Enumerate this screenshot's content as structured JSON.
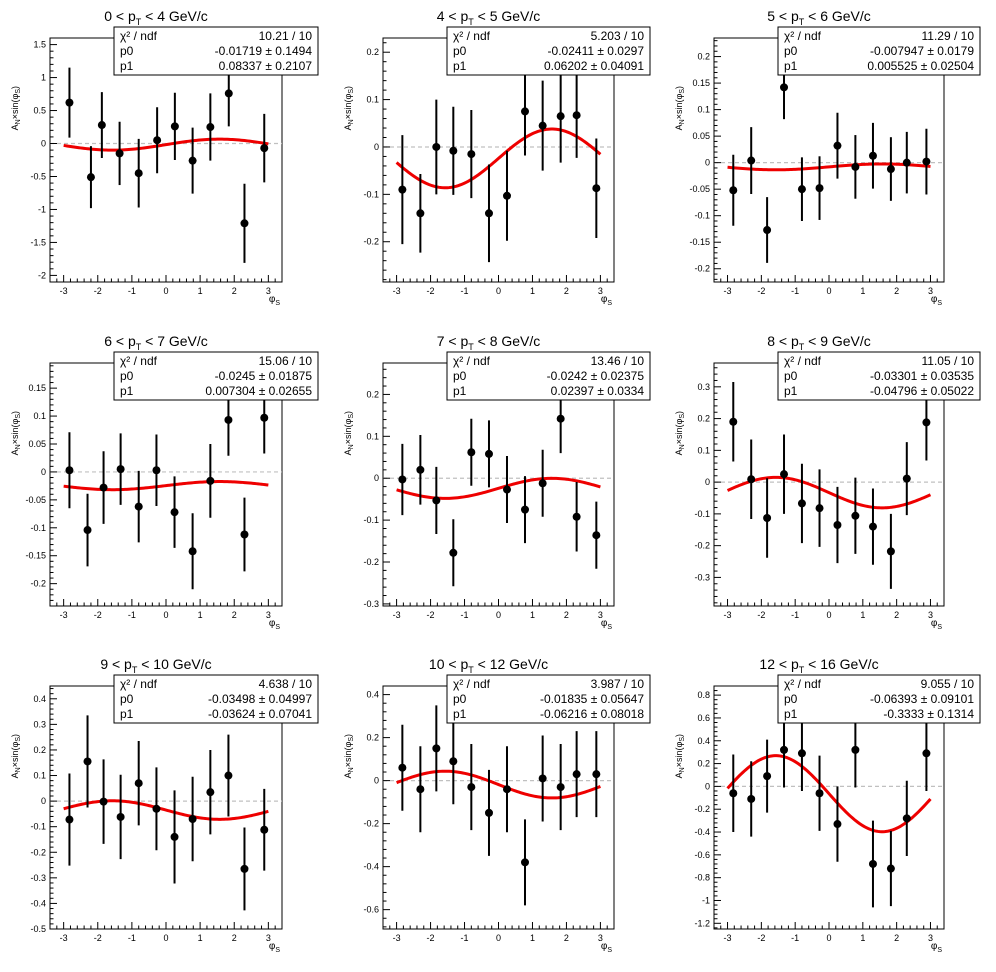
{
  "colors": {
    "fit": "#ee0000",
    "points": "#000000",
    "zero_line": "#c0c0c0",
    "frame": "#000000"
  },
  "chart_data": [
    {
      "type": "scatter",
      "title_prefix": "0 < p",
      "title_sub": "T",
      "title_suffix": " < 4 GeV/c",
      "ylabel": "A_{N}×sin(φ_{S})",
      "xlabel": "φ_{S}",
      "xlim": [
        -3.4,
        3.4
      ],
      "ylim": [
        -2.1,
        1.6
      ],
      "xticks": [
        -3,
        -2,
        -1,
        0,
        1,
        2,
        3
      ],
      "xtick_labels": [
        "-3",
        "-2",
        "-1",
        "0",
        "1",
        "2",
        "3"
      ],
      "yticks": [
        -2,
        -1.5,
        -1,
        -0.5,
        0,
        0.5,
        1,
        1.5
      ],
      "ytick_labels": [
        "-2",
        "-1.5",
        "-1",
        "-0.5",
        "0",
        "0.5",
        "1",
        "1.5"
      ],
      "stats": {
        "chi2_label": "χ² / ndf",
        "chi2": "10.21 / 10",
        "p0_label": "p0",
        "p0": "-0.01719 ± 0.1494",
        "p1_label": "p1",
        "p1": "0.08337 ± 0.2107"
      },
      "fit": {
        "p0": -0.01719,
        "p1": 0.08337
      },
      "points": [
        {
          "x": -2.83,
          "y": 0.62,
          "err": 0.53
        },
        {
          "x": -2.2,
          "y": -0.51,
          "err": 0.47
        },
        {
          "x": -1.88,
          "y": 0.28,
          "err": 0.5
        },
        {
          "x": -1.36,
          "y": -0.15,
          "err": 0.48
        },
        {
          "x": -0.8,
          "y": -0.45,
          "err": 0.52
        },
        {
          "x": -0.26,
          "y": 0.05,
          "err": 0.5
        },
        {
          "x": 0.26,
          "y": 0.26,
          "err": 0.51
        },
        {
          "x": 0.78,
          "y": -0.26,
          "err": 0.5
        },
        {
          "x": 1.3,
          "y": 0.25,
          "err": 0.51
        },
        {
          "x": 1.84,
          "y": 0.76,
          "err": 0.5
        },
        {
          "x": 2.3,
          "y": -1.21,
          "err": 0.6
        },
        {
          "x": 2.88,
          "y": -0.07,
          "err": 0.52
        }
      ]
    },
    {
      "type": "scatter",
      "title_prefix": "4 < p",
      "title_sub": "T",
      "title_suffix": " < 5 GeV/c",
      "ylabel": "A_{N}×sin(φ_{S})",
      "xlabel": "φ_{S}",
      "xlim": [
        -3.4,
        3.4
      ],
      "ylim": [
        -0.285,
        0.23
      ],
      "xticks": [
        -3,
        -2,
        -1,
        0,
        1,
        2,
        3
      ],
      "xtick_labels": [
        "-3",
        "-2",
        "-1",
        "0",
        "1",
        "2",
        "3"
      ],
      "yticks": [
        -0.2,
        -0.1,
        0,
        0.1,
        0.2
      ],
      "ytick_labels": [
        "-0.2",
        "-0.1",
        "0",
        "0.1",
        "0.2"
      ],
      "stats": {
        "chi2_label": "χ² / ndf",
        "chi2": "5.203 / 10",
        "p0_label": "p0",
        "p0": "-0.02411 ± 0.0297",
        "p1_label": "p1",
        "p1": "0.06202 ± 0.04091"
      },
      "fit": {
        "p0": -0.02411,
        "p1": 0.06202
      },
      "points": [
        {
          "x": -2.83,
          "y": -0.09,
          "err": 0.115
        },
        {
          "x": -2.3,
          "y": -0.14,
          "err": 0.083
        },
        {
          "x": -1.83,
          "y": 0.0,
          "err": 0.1
        },
        {
          "x": -1.33,
          "y": -0.008,
          "err": 0.093
        },
        {
          "x": -0.8,
          "y": -0.015,
          "err": 0.093
        },
        {
          "x": -0.28,
          "y": -0.14,
          "err": 0.103
        },
        {
          "x": 0.25,
          "y": -0.103,
          "err": 0.095
        },
        {
          "x": 0.78,
          "y": 0.075,
          "err": 0.093
        },
        {
          "x": 1.3,
          "y": 0.045,
          "err": 0.095
        },
        {
          "x": 1.83,
          "y": 0.065,
          "err": 0.098
        },
        {
          "x": 2.3,
          "y": 0.067,
          "err": 0.09
        },
        {
          "x": 2.88,
          "y": -0.087,
          "err": 0.105
        }
      ]
    },
    {
      "type": "scatter",
      "title_prefix": "5 < p",
      "title_sub": "T",
      "title_suffix": " < 6 GeV/c",
      "ylabel": "A_{N}×sin(φ_{S})",
      "xlabel": "φ_{S}",
      "xlim": [
        -3.4,
        3.4
      ],
      "ylim": [
        -0.225,
        0.235
      ],
      "xticks": [
        -3,
        -2,
        -1,
        0,
        1,
        2,
        3
      ],
      "xtick_labels": [
        "-3",
        "-2",
        "-1",
        "0",
        "1",
        "2",
        "3"
      ],
      "yticks": [
        -0.2,
        -0.15,
        -0.1,
        -0.05,
        0,
        0.05,
        0.1,
        0.15,
        0.2
      ],
      "ytick_labels": [
        "-0.2",
        "-0.15",
        "-0.1",
        "-0.05",
        "0",
        "0.05",
        "0.1",
        "0.15",
        "0.2"
      ],
      "stats": {
        "chi2_label": "χ² / ndf",
        "chi2": "11.29 / 10",
        "p0_label": "p0",
        "p0": "-0.007947 ± 0.0179",
        "p1_label": "p1",
        "p1": "0.005525 ± 0.02504"
      },
      "fit": {
        "p0": -0.007947,
        "p1": 0.005525
      },
      "points": [
        {
          "x": -2.83,
          "y": -0.052,
          "err": 0.067
        },
        {
          "x": -2.3,
          "y": 0.004,
          "err": 0.063
        },
        {
          "x": -1.83,
          "y": -0.127,
          "err": 0.062
        },
        {
          "x": -1.33,
          "y": 0.142,
          "err": 0.06
        },
        {
          "x": -0.8,
          "y": -0.05,
          "err": 0.06
        },
        {
          "x": -0.28,
          "y": -0.048,
          "err": 0.06
        },
        {
          "x": 0.25,
          "y": 0.032,
          "err": 0.062
        },
        {
          "x": 0.78,
          "y": -0.008,
          "err": 0.06
        },
        {
          "x": 1.3,
          "y": 0.013,
          "err": 0.062
        },
        {
          "x": 1.83,
          "y": -0.012,
          "err": 0.06
        },
        {
          "x": 2.3,
          "y": 0.0,
          "err": 0.058
        },
        {
          "x": 2.88,
          "y": 0.002,
          "err": 0.062
        }
      ]
    },
    {
      "type": "scatter",
      "title_prefix": "6 < p",
      "title_sub": "T",
      "title_suffix": " < 7 GeV/c",
      "ylabel": "A_{N}×sin(φ_{S})",
      "xlabel": "φ_{S}",
      "xlim": [
        -3.4,
        3.4
      ],
      "ylim": [
        -0.24,
        0.195
      ],
      "xticks": [
        -3,
        -2,
        -1,
        0,
        1,
        2,
        3
      ],
      "xtick_labels": [
        "-3",
        "-2",
        "-1",
        "0",
        "1",
        "2",
        "3"
      ],
      "yticks": [
        -0.2,
        -0.15,
        -0.1,
        -0.05,
        0,
        0.05,
        0.1,
        0.15
      ],
      "ytick_labels": [
        "-0.2",
        "-0.15",
        "-0.1",
        "-0.05",
        "0",
        "0.05",
        "0.1",
        "0.15"
      ],
      "stats": {
        "chi2_label": "χ² / ndf",
        "chi2": "15.06 / 10",
        "p0_label": "p0",
        "p0": "-0.0245 ± 0.01875",
        "p1_label": "p1",
        "p1": "0.007304 ± 0.02655"
      },
      "fit": {
        "p0": -0.0245,
        "p1": 0.007304
      },
      "points": [
        {
          "x": -2.83,
          "y": 0.003,
          "err": 0.068
        },
        {
          "x": -2.3,
          "y": -0.104,
          "err": 0.065
        },
        {
          "x": -1.83,
          "y": -0.028,
          "err": 0.065
        },
        {
          "x": -1.33,
          "y": 0.005,
          "err": 0.064
        },
        {
          "x": -0.8,
          "y": -0.062,
          "err": 0.064
        },
        {
          "x": -0.28,
          "y": 0.003,
          "err": 0.064
        },
        {
          "x": 0.25,
          "y": -0.072,
          "err": 0.064
        },
        {
          "x": 0.78,
          "y": -0.142,
          "err": 0.068
        },
        {
          "x": 1.3,
          "y": -0.016,
          "err": 0.066
        },
        {
          "x": 1.83,
          "y": 0.093,
          "err": 0.064
        },
        {
          "x": 2.3,
          "y": -0.112,
          "err": 0.066
        },
        {
          "x": 2.88,
          "y": 0.097,
          "err": 0.064
        }
      ]
    },
    {
      "type": "scatter",
      "title_prefix": "7 < p",
      "title_sub": "T",
      "title_suffix": " < 8 GeV/c",
      "ylabel": "A_{N}×sin(φ_{S})",
      "xlabel": "φ_{S}",
      "xlim": [
        -3.4,
        3.4
      ],
      "ylim": [
        -0.305,
        0.275
      ],
      "xticks": [
        -3,
        -2,
        -1,
        0,
        1,
        2,
        3
      ],
      "xtick_labels": [
        "-3",
        "-2",
        "-1",
        "0",
        "1",
        "2",
        "3"
      ],
      "yticks": [
        -0.3,
        -0.2,
        -0.1,
        0,
        0.1,
        0.2
      ],
      "ytick_labels": [
        "-0.3",
        "-0.2",
        "-0.1",
        "0",
        "0.1",
        "0.2"
      ],
      "stats": {
        "chi2_label": "χ² / ndf",
        "chi2": "13.46 / 10",
        "p0_label": "p0",
        "p0": "-0.0242 ± 0.02375",
        "p1_label": "p1",
        "p1": "0.02397 ± 0.0334"
      },
      "fit": {
        "p0": -0.0242,
        "p1": 0.02397
      },
      "points": [
        {
          "x": -2.83,
          "y": -0.003,
          "err": 0.085
        },
        {
          "x": -2.3,
          "y": 0.02,
          "err": 0.083
        },
        {
          "x": -1.83,
          "y": -0.053,
          "err": 0.08
        },
        {
          "x": -1.33,
          "y": -0.178,
          "err": 0.08
        },
        {
          "x": -0.8,
          "y": 0.062,
          "err": 0.08
        },
        {
          "x": -0.28,
          "y": 0.058,
          "err": 0.08
        },
        {
          "x": 0.25,
          "y": -0.027,
          "err": 0.08
        },
        {
          "x": 0.78,
          "y": -0.075,
          "err": 0.08
        },
        {
          "x": 1.3,
          "y": -0.012,
          "err": 0.08
        },
        {
          "x": 1.83,
          "y": 0.142,
          "err": 0.082
        },
        {
          "x": 2.3,
          "y": -0.092,
          "err": 0.083
        },
        {
          "x": 2.88,
          "y": -0.136,
          "err": 0.08
        }
      ]
    },
    {
      "type": "scatter",
      "title_prefix": "8 < p",
      "title_sub": "T",
      "title_suffix": " < 9 GeV/c",
      "ylabel": "A_{N}×sin(φ_{S})",
      "xlabel": "φ_{S}",
      "xlim": [
        -3.4,
        3.4
      ],
      "ylim": [
        -0.39,
        0.375
      ],
      "xticks": [
        -3,
        -2,
        -1,
        0,
        1,
        2,
        3
      ],
      "xtick_labels": [
        "-3",
        "-2",
        "-1",
        "0",
        "1",
        "2",
        "3"
      ],
      "yticks": [
        -0.3,
        -0.2,
        -0.1,
        0,
        0.1,
        0.2,
        0.3
      ],
      "ytick_labels": [
        "-0.3",
        "-0.2",
        "-0.1",
        "0",
        "0.1",
        "0.2",
        "0.3"
      ],
      "stats": {
        "chi2_label": "χ² / ndf",
        "chi2": "11.05 / 10",
        "p0_label": "p0",
        "p0": "-0.03301 ± 0.03535",
        "p1_label": "p1",
        "p1": "-0.04796 ± 0.05022"
      },
      "fit": {
        "p0": -0.03301,
        "p1": -0.04796
      },
      "points": [
        {
          "x": -2.83,
          "y": 0.19,
          "err": 0.125
        },
        {
          "x": -2.3,
          "y": 0.009,
          "err": 0.125
        },
        {
          "x": -1.83,
          "y": -0.113,
          "err": 0.125
        },
        {
          "x": -1.33,
          "y": 0.025,
          "err": 0.125
        },
        {
          "x": -0.8,
          "y": -0.067,
          "err": 0.125
        },
        {
          "x": -0.28,
          "y": -0.082,
          "err": 0.122
        },
        {
          "x": 0.25,
          "y": -0.135,
          "err": 0.12
        },
        {
          "x": 0.78,
          "y": -0.106,
          "err": 0.12
        },
        {
          "x": 1.3,
          "y": -0.14,
          "err": 0.12
        },
        {
          "x": 1.83,
          "y": -0.218,
          "err": 0.118
        },
        {
          "x": 2.3,
          "y": 0.011,
          "err": 0.115
        },
        {
          "x": 2.88,
          "y": 0.188,
          "err": 0.12
        }
      ]
    },
    {
      "type": "scatter",
      "title_prefix": "9 < p",
      "title_sub": "T",
      "title_suffix": " < 10 GeV/c",
      "ylabel": "A_{N}×sin(φ_{S})",
      "xlabel": "φ_{S}",
      "xlim": [
        -3.4,
        3.4
      ],
      "ylim": [
        -0.5,
        0.45
      ],
      "xticks": [
        -3,
        -2,
        -1,
        0,
        1,
        2,
        3
      ],
      "xtick_labels": [
        "-3",
        "-2",
        "-1",
        "0",
        "1",
        "2",
        "3"
      ],
      "yticks": [
        -0.5,
        -0.4,
        -0.3,
        -0.2,
        -0.1,
        0,
        0.1,
        0.2,
        0.3,
        0.4
      ],
      "ytick_labels": [
        "-0.5",
        "-0.4",
        "-0.3",
        "-0.2",
        "-0.1",
        "0",
        "0.1",
        "0.2",
        "0.3",
        "0.4"
      ],
      "stats": {
        "chi2_label": "χ² / ndf",
        "chi2": "4.638 / 10",
        "p0_label": "p0",
        "p0": "-0.03498 ± 0.04997",
        "p1_label": "p1",
        "p1": "-0.03624 ± 0.07041"
      },
      "fit": {
        "p0": -0.03498,
        "p1": -0.03624
      },
      "points": [
        {
          "x": -2.83,
          "y": -0.072,
          "err": 0.18
        },
        {
          "x": -2.3,
          "y": 0.155,
          "err": 0.18
        },
        {
          "x": -1.83,
          "y": -0.002,
          "err": 0.165
        },
        {
          "x": -1.33,
          "y": -0.062,
          "err": 0.165
        },
        {
          "x": -0.8,
          "y": 0.07,
          "err": 0.165
        },
        {
          "x": -0.28,
          "y": -0.03,
          "err": 0.162
        },
        {
          "x": 0.25,
          "y": -0.14,
          "err": 0.182
        },
        {
          "x": 0.78,
          "y": -0.07,
          "err": 0.165
        },
        {
          "x": 1.3,
          "y": 0.035,
          "err": 0.165
        },
        {
          "x": 1.83,
          "y": 0.1,
          "err": 0.16
        },
        {
          "x": 2.3,
          "y": -0.265,
          "err": 0.162
        },
        {
          "x": 2.88,
          "y": -0.112,
          "err": 0.16
        }
      ]
    },
    {
      "type": "scatter",
      "title_prefix": "10 < p",
      "title_sub": "T",
      "title_suffix": " < 12 GeV/c",
      "ylabel": "A_{N}×sin(φ_{S})",
      "xlabel": "φ_{S}",
      "xlim": [
        -3.4,
        3.4
      ],
      "ylim": [
        -0.69,
        0.44
      ],
      "xticks": [
        -3,
        -2,
        -1,
        0,
        1,
        2,
        3
      ],
      "xtick_labels": [
        "-3",
        "-2",
        "-1",
        "0",
        "1",
        "2",
        "3"
      ],
      "yticks": [
        -0.6,
        -0.4,
        -0.2,
        0,
        0.2,
        0.4
      ],
      "ytick_labels": [
        "-0.6",
        "-0.4",
        "-0.2",
        "0",
        "0.2",
        "0.4"
      ],
      "stats": {
        "chi2_label": "χ² / ndf",
        "chi2": "3.987 / 10",
        "p0_label": "p0",
        "p0": "-0.01835 ± 0.05647",
        "p1_label": "p1",
        "p1": "-0.06216 ± 0.08018"
      },
      "fit": {
        "p0": -0.01835,
        "p1": -0.06216
      },
      "points": [
        {
          "x": -2.83,
          "y": 0.06,
          "err": 0.2
        },
        {
          "x": -2.3,
          "y": -0.04,
          "err": 0.2
        },
        {
          "x": -1.83,
          "y": 0.15,
          "err": 0.2
        },
        {
          "x": -1.33,
          "y": 0.09,
          "err": 0.2
        },
        {
          "x": -0.8,
          "y": -0.03,
          "err": 0.2
        },
        {
          "x": -0.28,
          "y": -0.15,
          "err": 0.2
        },
        {
          "x": 0.25,
          "y": -0.04,
          "err": 0.2
        },
        {
          "x": 0.78,
          "y": -0.38,
          "err": 0.2
        },
        {
          "x": 1.3,
          "y": 0.01,
          "err": 0.2
        },
        {
          "x": 1.83,
          "y": -0.03,
          "err": 0.2
        },
        {
          "x": 2.3,
          "y": 0.03,
          "err": 0.2
        },
        {
          "x": 2.88,
          "y": 0.03,
          "err": 0.2
        }
      ]
    },
    {
      "type": "scatter",
      "title_prefix": "12 < p",
      "title_sub": "T",
      "title_suffix": " < 16 GeV/c",
      "ylabel": "A_{N}×sin(φ_{S})",
      "xlabel": "φ_{S}",
      "xlim": [
        -3.4,
        3.4
      ],
      "ylim": [
        -1.25,
        0.88
      ],
      "xticks": [
        -3,
        -2,
        -1,
        0,
        1,
        2,
        3
      ],
      "xtick_labels": [
        "-3",
        "-2",
        "-1",
        "0",
        "1",
        "2",
        "3"
      ],
      "yticks": [
        -1.2,
        -1,
        -0.8,
        -0.6,
        -0.4,
        -0.2,
        0,
        0.2,
        0.4,
        0.6,
        0.8
      ],
      "ytick_labels": [
        "-1.2",
        "-1",
        "-0.8",
        "-0.6",
        "-0.4",
        "-0.2",
        "0",
        "0.2",
        "0.4",
        "0.6",
        "0.8"
      ],
      "stats": {
        "chi2_label": "χ² / ndf",
        "chi2": "9.055 / 10",
        "p0_label": "p0",
        "p0": "-0.06393 ± 0.09101",
        "p1_label": "p1",
        "p1": "-0.3333 ± 0.1314"
      },
      "fit": {
        "p0": -0.06393,
        "p1": -0.3333
      },
      "points": [
        {
          "x": -2.83,
          "y": -0.06,
          "err": 0.34
        },
        {
          "x": -2.3,
          "y": -0.11,
          "err": 0.33
        },
        {
          "x": -1.83,
          "y": 0.09,
          "err": 0.32
        },
        {
          "x": -1.33,
          "y": 0.32,
          "err": 0.33
        },
        {
          "x": -0.8,
          "y": 0.29,
          "err": 0.33
        },
        {
          "x": -0.28,
          "y": -0.06,
          "err": 0.33
        },
        {
          "x": 0.25,
          "y": -0.33,
          "err": 0.33
        },
        {
          "x": 0.78,
          "y": 0.32,
          "err": 0.33
        },
        {
          "x": 1.3,
          "y": -0.68,
          "err": 0.38
        },
        {
          "x": 1.83,
          "y": -0.72,
          "err": 0.33
        },
        {
          "x": 2.3,
          "y": -0.28,
          "err": 0.33
        },
        {
          "x": 2.88,
          "y": 0.29,
          "err": 0.33
        }
      ]
    }
  ]
}
